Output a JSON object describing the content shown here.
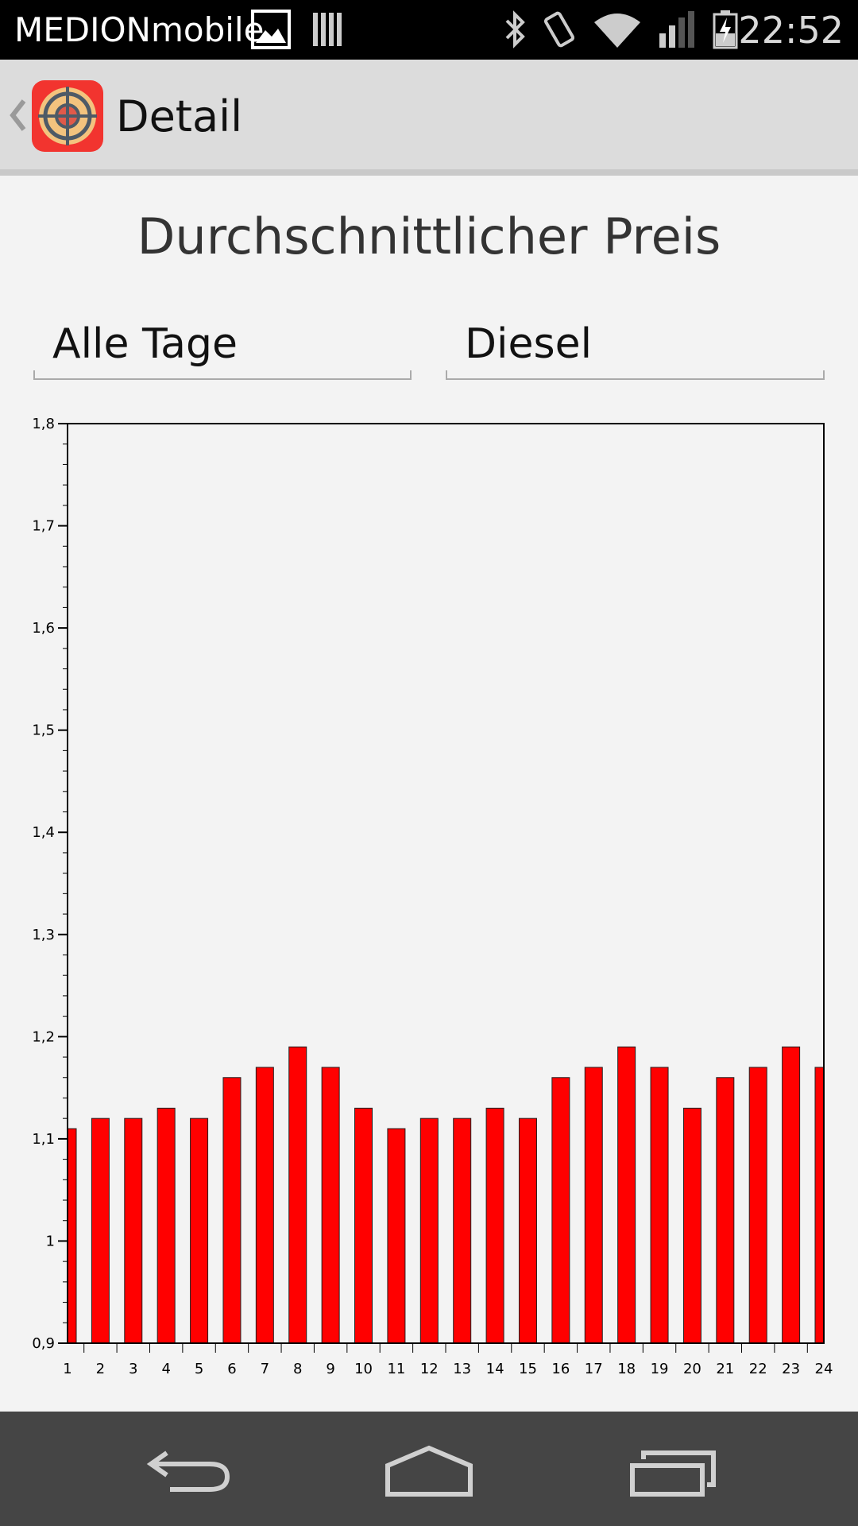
{
  "status_bar": {
    "carrier": "MEDIONmobile",
    "time": "22:52",
    "icons": [
      "image-icon",
      "notification-icon",
      "bluetooth-icon",
      "vibrate-icon",
      "wifi-icon",
      "signal-icon",
      "battery-charging-icon"
    ]
  },
  "action_bar": {
    "title": "Detail",
    "back_icon": "chevron-left-icon",
    "app_icon": "target-app-icon"
  },
  "header": {
    "title": "Durchschnittlicher Preis"
  },
  "filters": {
    "days": "Alle Tage",
    "fuel": "Diesel"
  },
  "colors": {
    "bar_fill": "#ff0000",
    "bar_stroke": "#222222",
    "axis": "#000000",
    "background": "#f3f3f3"
  },
  "chart_data": {
    "type": "bar",
    "title": "",
    "xlabel": "",
    "ylabel": "",
    "categories": [
      "1",
      "2",
      "3",
      "4",
      "5",
      "6",
      "7",
      "8",
      "9",
      "10",
      "11",
      "12",
      "13",
      "14",
      "15",
      "16",
      "17",
      "18",
      "19",
      "20",
      "21",
      "22",
      "23",
      "24"
    ],
    "values": [
      1.11,
      1.12,
      1.12,
      1.13,
      1.12,
      1.16,
      1.17,
      1.19,
      1.17,
      1.13,
      1.11,
      1.12,
      1.12,
      1.13,
      1.12,
      1.16,
      1.17,
      1.19,
      1.17,
      1.13,
      1.16,
      1.17,
      1.19,
      1.17
    ],
    "ylim": [
      0.9,
      1.8
    ],
    "y_ticks": [
      {
        "value": 0.9,
        "label": "0,9"
      },
      {
        "value": 1.0,
        "label": "1"
      },
      {
        "value": 1.1,
        "label": "1,1"
      },
      {
        "value": 1.2,
        "label": "1,2"
      },
      {
        "value": 1.3,
        "label": "1,3"
      },
      {
        "value": 1.4,
        "label": "1,4"
      },
      {
        "value": 1.5,
        "label": "1,5"
      },
      {
        "value": 1.6,
        "label": "1,6"
      },
      {
        "value": 1.7,
        "label": "1,7"
      },
      {
        "value": 1.8,
        "label": "1,8"
      }
    ],
    "grid": false,
    "legend": "none"
  },
  "nav_bar": {
    "buttons": [
      "back-nav-icon",
      "home-nav-icon",
      "recents-nav-icon"
    ]
  }
}
